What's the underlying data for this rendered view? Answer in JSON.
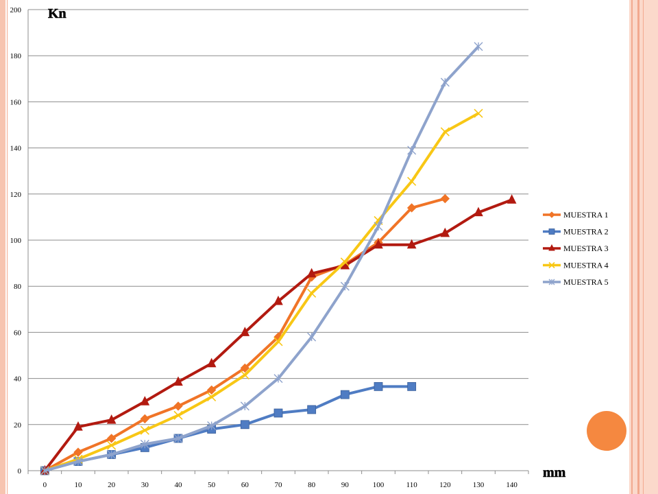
{
  "chart_data": {
    "type": "line",
    "ylabel": "Kn",
    "xlabel": "mm",
    "x": [
      0,
      10,
      20,
      30,
      40,
      50,
      60,
      70,
      80,
      90,
      100,
      110,
      120,
      130,
      140
    ],
    "ylim": [
      0,
      200
    ],
    "yticks": [
      0,
      20,
      40,
      60,
      80,
      100,
      120,
      140,
      160,
      180,
      200
    ],
    "grid": "horizontal",
    "legend": "right",
    "series": [
      {
        "name": "MUESTRA 1",
        "color": "#f07427",
        "marker": "diamond",
        "values": [
          0,
          8,
          14,
          22.5,
          28,
          35,
          44.5,
          58,
          84,
          89.5,
          99,
          114,
          118,
          null,
          null
        ]
      },
      {
        "name": "MUESTRA 2",
        "color": "#4f7cc3",
        "marker": "square",
        "values": [
          0,
          4,
          7,
          10,
          14,
          18,
          20,
          25,
          26.5,
          33,
          36.5,
          36.5,
          null,
          null,
          null
        ]
      },
      {
        "name": "MUESTRA 3",
        "color": "#b21a10",
        "marker": "triangle",
        "values": [
          0,
          19,
          22,
          30,
          38.5,
          46.5,
          60,
          73.5,
          85.5,
          89,
          98,
          98,
          103,
          112,
          117.5
        ]
      },
      {
        "name": "MUESTRA 4",
        "color": "#f8c715",
        "marker": "x",
        "values": [
          0,
          5,
          11,
          17.5,
          24,
          32,
          41.5,
          56,
          77,
          90.5,
          108.5,
          125.5,
          147,
          155,
          null
        ]
      },
      {
        "name": "MUESTRA 5",
        "color": "#8ea3cc",
        "marker": "asterisk",
        "values": [
          0,
          4,
          7,
          11.5,
          14,
          19.5,
          28,
          40,
          58,
          80,
          106,
          139,
          168.5,
          184,
          null
        ]
      }
    ]
  }
}
